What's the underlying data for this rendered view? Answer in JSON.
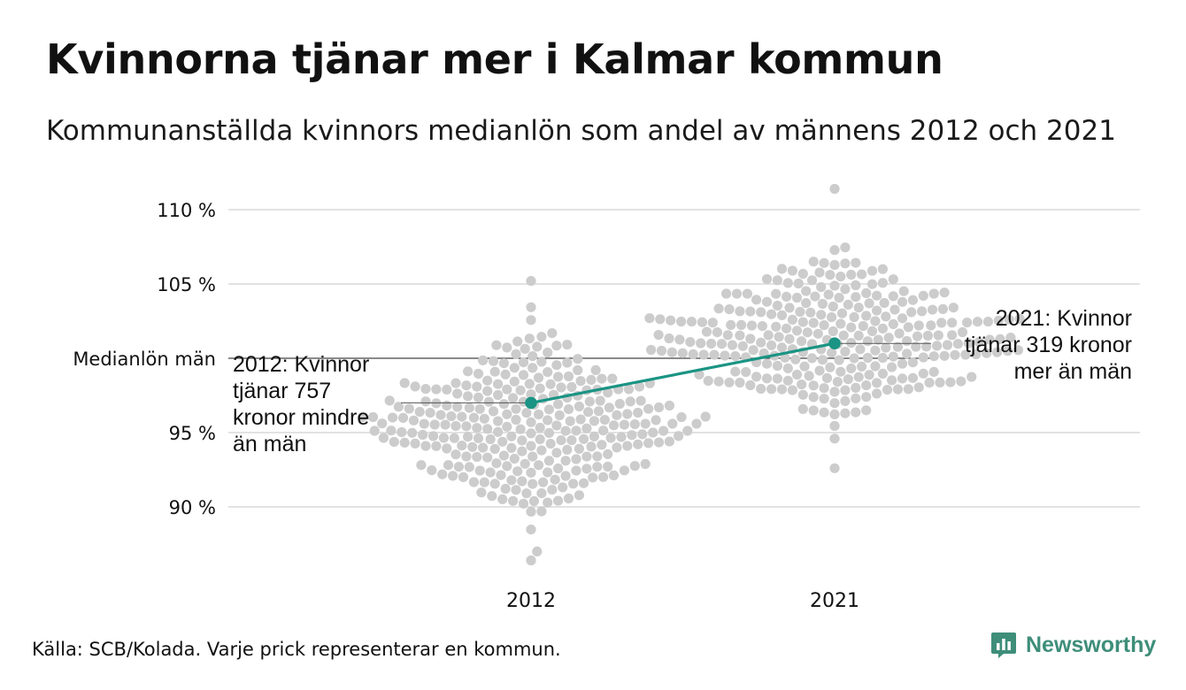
{
  "title": "Kvinnorna tjänar mer i Kalmar kommun",
  "subtitle": "Kommunanställda kvinnors medianlön som andel av männens 2012 och 2021",
  "source": "Källa: SCB/Kolada. Varje prick representerar en kommun.",
  "brand": {
    "name": "Newsworthy",
    "icon": "newsworthy-logo-icon"
  },
  "colors": {
    "dots": "#cccccc",
    "highlight": "#1a9484",
    "grid": "#e2e2e2",
    "reference_line": "#444444",
    "text": "#111111"
  },
  "chart_data": {
    "type": "scatter",
    "style": "beeswarm",
    "ylim": [
      85.5,
      111.5
    ],
    "yticks": [
      {
        "value": 90,
        "label": "90 %"
      },
      {
        "value": 95,
        "label": "95 %"
      },
      {
        "value": 105,
        "label": "105 %"
      },
      {
        "value": 110,
        "label": "110 %"
      }
    ],
    "categories": [
      "2012",
      "2021"
    ],
    "reference_line": {
      "value": 100,
      "label": "Medianlön män"
    },
    "highlight": {
      "name": "Kalmar kommun",
      "points": [
        {
          "x": "2012",
          "y": 97.0
        },
        {
          "x": "2021",
          "y": 101.0
        }
      ],
      "annotations": [
        {
          "x": "2012",
          "lines": [
            "2012: Kvinnor",
            "tjänar 757",
            "kronor mindre",
            "än män"
          ]
        },
        {
          "x": "2021",
          "lines": [
            "2021: Kvinnor",
            "tjänar 319 kronor",
            "mer än män"
          ]
        }
      ]
    },
    "distribution": {
      "2012": {
        "count": 290,
        "median": 95.4,
        "min": 86.4,
        "max": 105.2,
        "spread_sd": 2.7
      },
      "2021": {
        "count": 290,
        "median": 101.4,
        "min": 92.6,
        "max": 111.4,
        "spread_sd": 2.5
      }
    }
  }
}
